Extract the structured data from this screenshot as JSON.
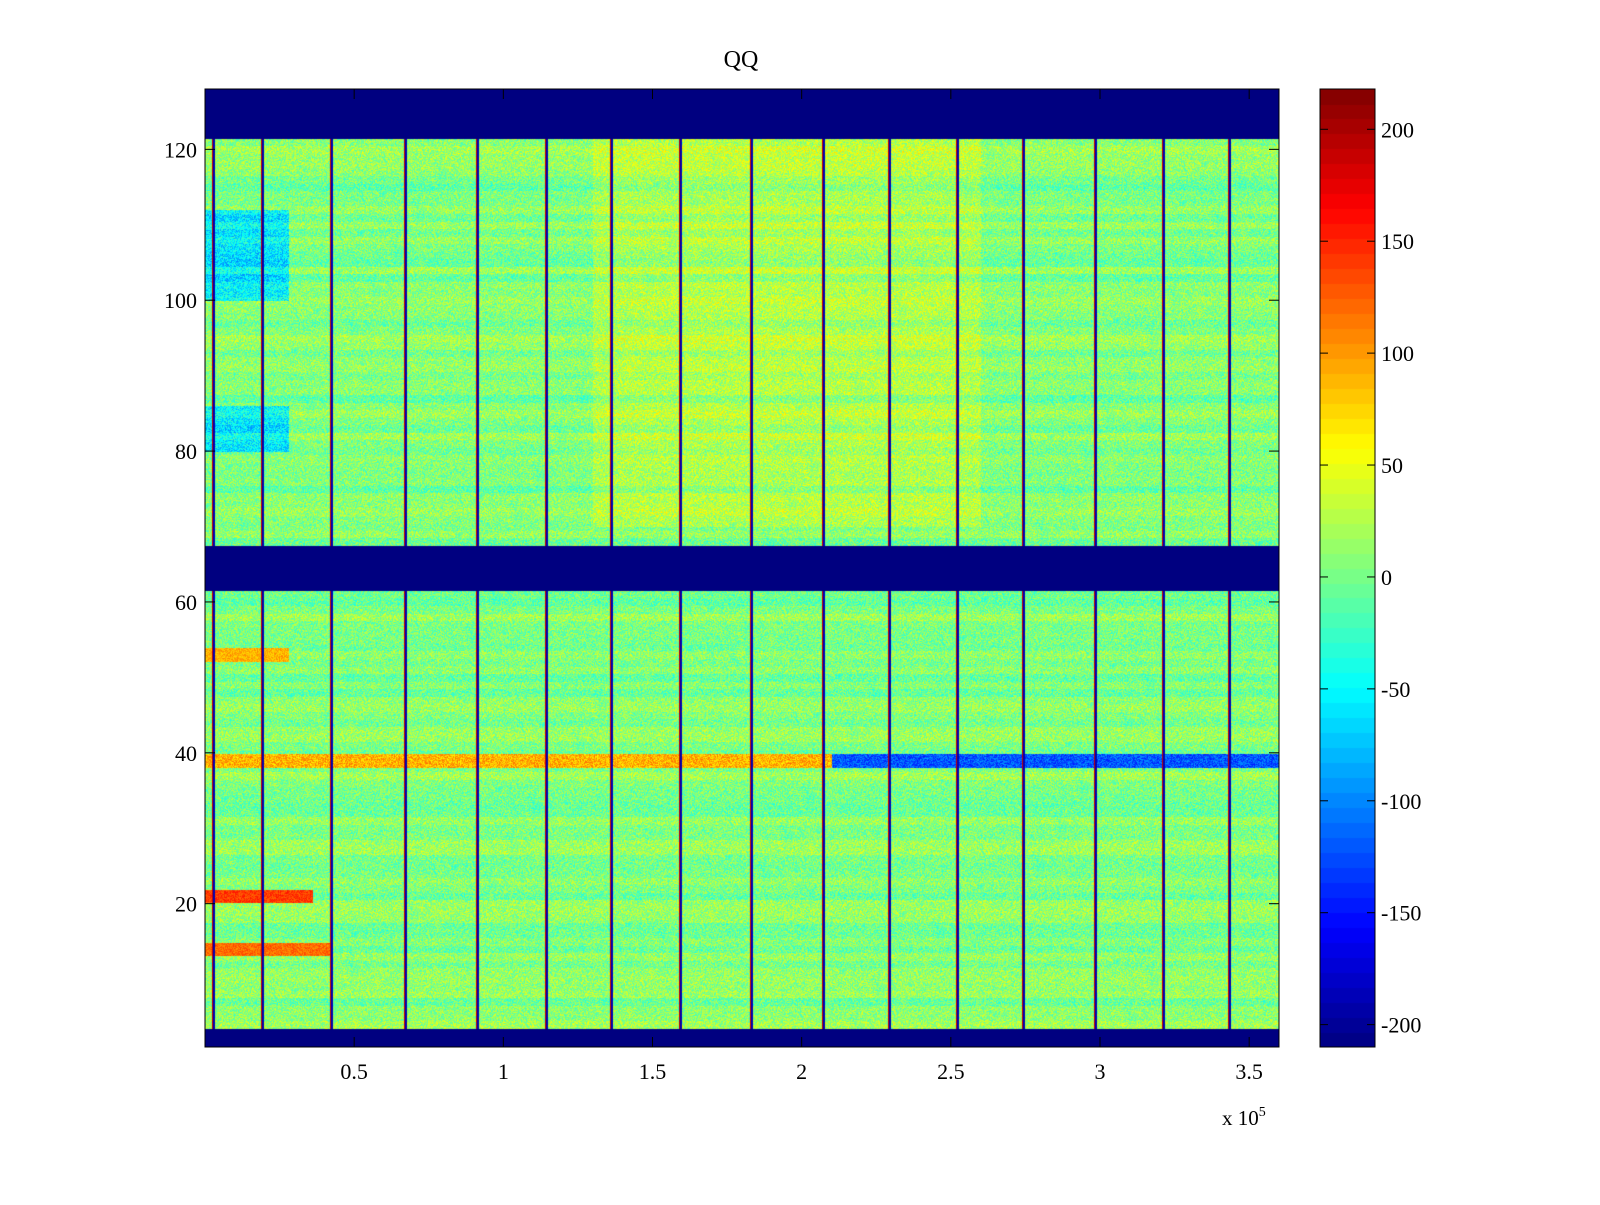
{
  "chart_data": {
    "type": "heatmap",
    "title": "QQ",
    "xlabel": "",
    "ylabel": "",
    "x_exponent_label": "x 10",
    "x_exponent_power": "5",
    "xlim": [
      0,
      360000
    ],
    "ylim": [
      1,
      128
    ],
    "xticks": [
      50000,
      100000,
      150000,
      200000,
      250000,
      300000,
      350000
    ],
    "xtick_labels": [
      "0.5",
      "1",
      "1.5",
      "2",
      "2.5",
      "3",
      "3.5"
    ],
    "yticks": [
      20,
      40,
      60,
      80,
      100,
      120
    ],
    "ytick_labels": [
      "20",
      "40",
      "60",
      "80",
      "100",
      "120"
    ],
    "colormap": "jet",
    "clim": [
      -210,
      218
    ],
    "colorbar_ticks": [
      200,
      150,
      100,
      50,
      0,
      -50,
      -100,
      -150,
      -200
    ],
    "colorbar_tick_labels": [
      "200",
      "150",
      "100",
      "50",
      "0",
      "-50",
      "-100",
      "-150",
      "-200"
    ],
    "masked_row_bands": [
      {
        "rows": [
          1,
          3
        ],
        "value": -210
      },
      {
        "rows": [
          62,
          67
        ],
        "value": -210
      },
      {
        "rows": [
          122,
          128
        ],
        "value": -210
      }
    ],
    "vertical_artifact_lines_x": [
      2500,
      19000,
      42000,
      67000,
      91000,
      114000,
      136000,
      159000,
      183000,
      207000,
      229000,
      252000,
      274000,
      298000,
      321000,
      343000
    ],
    "horizontal_feature_rows": [
      {
        "row": 39,
        "x_range": [
          0,
          360000
        ],
        "description_value": "high-left / low-right"
      },
      {
        "row": 21,
        "x_range": [
          0,
          36000
        ],
        "value": 140
      },
      {
        "row": 14,
        "x_range": [
          0,
          42000
        ],
        "value": 120
      },
      {
        "row": 53,
        "x_range": [
          0,
          28000
        ],
        "value": 90
      }
    ],
    "background_mean_value": 5
  }
}
